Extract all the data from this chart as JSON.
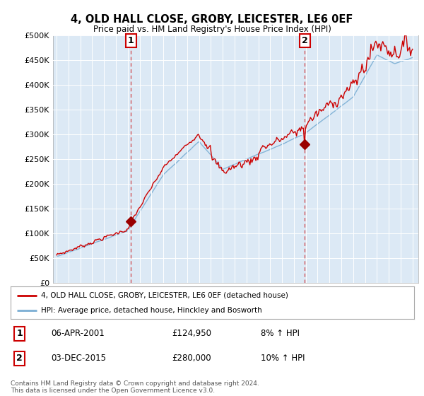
{
  "title": "4, OLD HALL CLOSE, GROBY, LEICESTER, LE6 0EF",
  "subtitle": "Price paid vs. HM Land Registry's House Price Index (HPI)",
  "plot_bg_color": "#dce9f5",
  "outer_bg_color": "#ffffff",
  "ylim": [
    0,
    500000
  ],
  "yticks": [
    0,
    50000,
    100000,
    150000,
    200000,
    250000,
    300000,
    350000,
    400000,
    450000,
    500000
  ],
  "ytick_labels": [
    "£0",
    "£50K",
    "£100K",
    "£150K",
    "£200K",
    "£250K",
    "£300K",
    "£350K",
    "£400K",
    "£450K",
    "£500K"
  ],
  "xlim_start": 1994.7,
  "xlim_end": 2025.5,
  "purchase1_date": 2001.27,
  "purchase1_price": 124950,
  "purchase1_label": "1",
  "purchase2_date": 2015.92,
  "purchase2_price": 280000,
  "purchase2_label": "2",
  "legend_line1": "4, OLD HALL CLOSE, GROBY, LEICESTER, LE6 0EF (detached house)",
  "legend_line2": "HPI: Average price, detached house, Hinckley and Bosworth",
  "table_row1": [
    "1",
    "06-APR-2001",
    "£124,950",
    "8% ↑ HPI"
  ],
  "table_row2": [
    "2",
    "03-DEC-2015",
    "£280,000",
    "10% ↑ HPI"
  ],
  "footer": "Contains HM Land Registry data © Crown copyright and database right 2024.\nThis data is licensed under the Open Government Licence v3.0.",
  "line_color_red": "#cc0000",
  "line_color_blue": "#7bafd4",
  "vline_color": "#cc0000",
  "marker_color_red": "#990000",
  "box_color": "#cc0000",
  "grid_color": "#ffffff"
}
